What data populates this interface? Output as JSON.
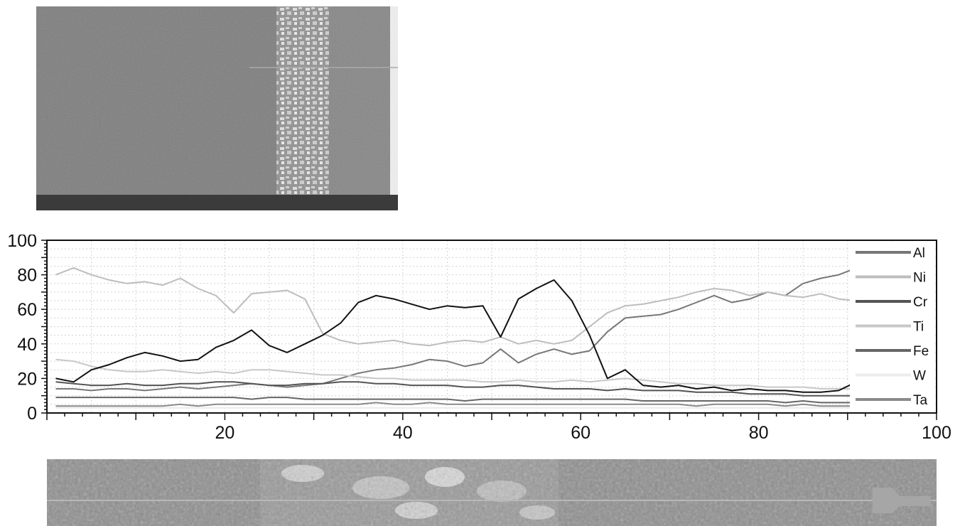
{
  "figure": {
    "top_image": "sem-micrograph-cross-section",
    "bottom_image": "linescan-strip-micrograph"
  },
  "chart_data": {
    "type": "line",
    "title": "",
    "xlabel": "",
    "ylabel": "",
    "xlim": [
      0,
      100
    ],
    "ylim": [
      0,
      100
    ],
    "x_ticks": [
      20,
      40,
      60,
      80,
      100
    ],
    "y_ticks": [
      0,
      20,
      40,
      60,
      80,
      100
    ],
    "grid": true,
    "legend_position": "right",
    "x": [
      1,
      3,
      5,
      7,
      9,
      11,
      13,
      15,
      17,
      19,
      21,
      23,
      25,
      27,
      29,
      31,
      33,
      35,
      37,
      39,
      41,
      43,
      45,
      47,
      49,
      51,
      53,
      55,
      57,
      59,
      61,
      63,
      65,
      67,
      69,
      71,
      73,
      75,
      77,
      79,
      81,
      83,
      85,
      87,
      89,
      91
    ],
    "series": [
      {
        "name": "Al",
        "color": "#777777",
        "values": [
          14,
          14,
          13,
          14,
          14,
          13,
          14,
          15,
          14,
          15,
          16,
          17,
          16,
          15,
          16,
          17,
          20,
          23,
          25,
          26,
          28,
          31,
          30,
          27,
          29,
          37,
          29,
          34,
          37,
          34,
          36,
          47,
          55,
          56,
          57,
          60,
          64,
          68,
          64,
          66,
          70,
          68,
          75,
          78,
          80,
          84
        ]
      },
      {
        "name": "Ni",
        "color": "#bdbdbd",
        "values": [
          80,
          84,
          80,
          77,
          75,
          76,
          74,
          78,
          72,
          68,
          58,
          69,
          70,
          71,
          66,
          46,
          42,
          40,
          41,
          42,
          40,
          39,
          41,
          42,
          41,
          44,
          40,
          42,
          40,
          42,
          50,
          58,
          62,
          63,
          65,
          67,
          70,
          72,
          71,
          68,
          70,
          68,
          67,
          69,
          66,
          65
        ]
      },
      {
        "name": "Cr",
        "color": "#545454",
        "values": [
          18,
          17,
          16,
          16,
          17,
          16,
          16,
          17,
          17,
          18,
          18,
          17,
          16,
          16,
          17,
          17,
          18,
          18,
          17,
          17,
          16,
          16,
          16,
          15,
          15,
          16,
          16,
          15,
          14,
          14,
          14,
          13,
          14,
          13,
          13,
          13,
          12,
          12,
          12,
          11,
          11,
          11,
          10,
          10,
          10,
          10
        ]
      },
      {
        "name": "Ti",
        "color": "#c8c8c8",
        "values": [
          31,
          30,
          27,
          25,
          24,
          24,
          25,
          24,
          23,
          24,
          23,
          25,
          25,
          24,
          23,
          22,
          22,
          21,
          20,
          20,
          19,
          19,
          19,
          19,
          18,
          18,
          19,
          18,
          18,
          19,
          18,
          19,
          20,
          19,
          18,
          17,
          17,
          16,
          16,
          16,
          15,
          15,
          15,
          14,
          14,
          14
        ]
      },
      {
        "name": "Fe",
        "color": "#666666",
        "values": [
          9,
          9,
          9,
          9,
          9,
          9,
          9,
          9,
          9,
          9,
          9,
          8,
          9,
          9,
          8,
          8,
          8,
          8,
          8,
          8,
          8,
          8,
          8,
          7,
          8,
          8,
          8,
          8,
          8,
          8,
          8,
          8,
          8,
          7,
          7,
          7,
          7,
          7,
          7,
          7,
          7,
          6,
          7,
          6,
          6,
          6
        ]
      },
      {
        "name": "W",
        "color": "#ececec",
        "values": [
          3,
          3,
          3,
          3,
          3,
          3,
          3,
          3,
          3,
          3,
          3,
          3,
          3,
          3,
          3,
          3,
          3,
          3,
          3,
          3,
          3,
          3,
          3,
          3,
          3,
          3,
          3,
          3,
          3,
          3,
          3,
          3,
          3,
          3,
          3,
          3,
          3,
          3,
          3,
          3,
          3,
          3,
          3,
          3,
          3,
          3
        ]
      },
      {
        "name": "Ta",
        "color": "#8a8a8a",
        "values": [
          4,
          4,
          4,
          4,
          4,
          4,
          4,
          5,
          4,
          5,
          5,
          5,
          5,
          5,
          5,
          5,
          5,
          5,
          6,
          5,
          5,
          6,
          5,
          5,
          5,
          5,
          5,
          5,
          5,
          5,
          5,
          5,
          5,
          5,
          5,
          5,
          4,
          5,
          5,
          5,
          5,
          4,
          5,
          4,
          4,
          4
        ]
      },
      {
        "name": "",
        "color": "#111111",
        "values": [
          20,
          18,
          25,
          28,
          32,
          35,
          33,
          30,
          31,
          38,
          42,
          48,
          39,
          35,
          40,
          45,
          52,
          64,
          68,
          66,
          63,
          60,
          62,
          61,
          62,
          44,
          66,
          72,
          77,
          65,
          45,
          20,
          25,
          16,
          15,
          16,
          14,
          15,
          13,
          14,
          13,
          13,
          12,
          12,
          13,
          18
        ]
      }
    ]
  }
}
